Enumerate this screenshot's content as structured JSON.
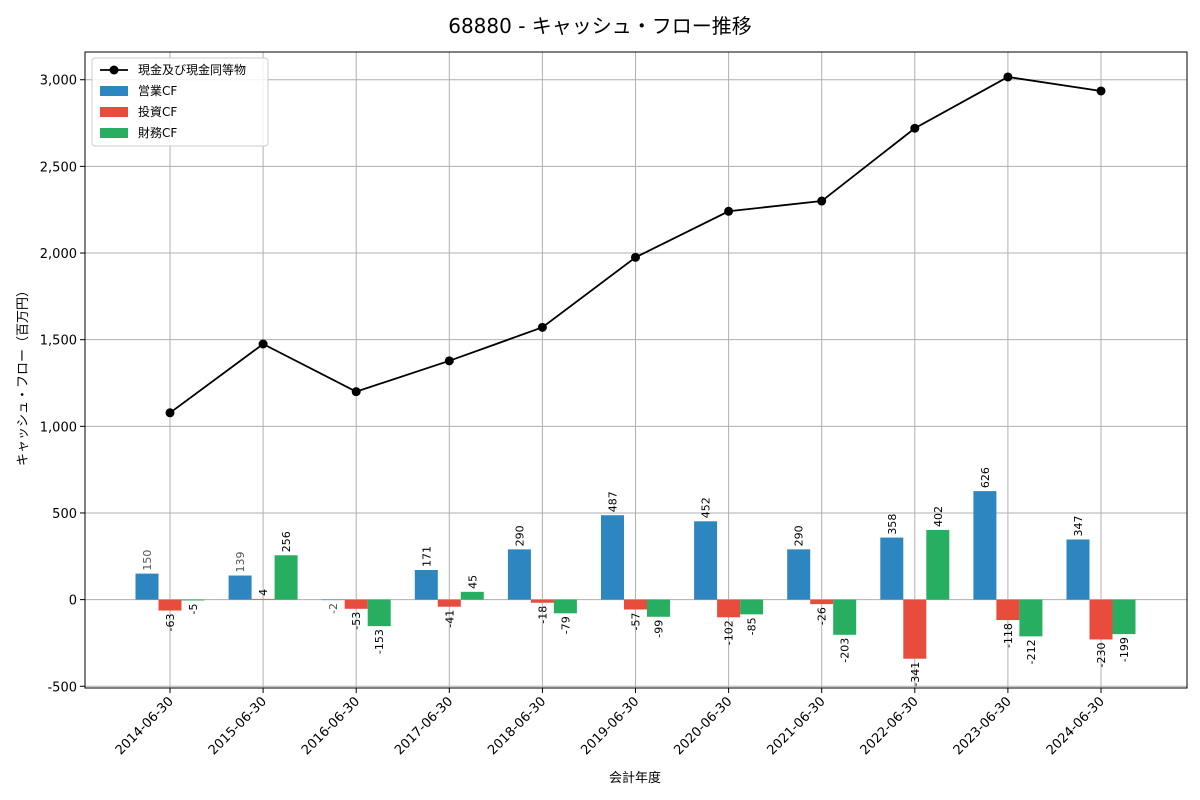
{
  "chart_data": {
    "type": "bar",
    "title": "68880 - キャッシュ・フロー推移",
    "xlabel": "会計年度",
    "ylabel": "キャッシュ・フロー（百万円）",
    "categories": [
      "2014-06-30",
      "2015-06-30",
      "2016-06-30",
      "2017-06-30",
      "2018-06-30",
      "2019-06-30",
      "2020-06-30",
      "2021-06-30",
      "2022-06-30",
      "2023-06-30",
      "2024-06-30"
    ],
    "ylim": [
      -510,
      3160
    ],
    "yticks": [
      -500,
      0,
      500,
      1000,
      1500,
      2000,
      2500,
      3000
    ],
    "ytick_labels": [
      "-500",
      "0",
      "500",
      "1,000",
      "1,500",
      "2,000",
      "2,500",
      "3,000"
    ],
    "grid": true,
    "legend_position": "top-left",
    "line_series": {
      "name": "現金及び現金同等物",
      "color": "#000000",
      "values": [
        1078,
        1475,
        1200,
        1378,
        1571,
        1975,
        2241,
        2300,
        2720,
        3016,
        2935
      ]
    },
    "series": [
      {
        "name": "営業CF",
        "color": "#2e86c1",
        "values": [
          150,
          139,
          -2,
          171,
          290,
          487,
          452,
          290,
          358,
          626,
          347
        ]
      },
      {
        "name": "投資CF",
        "color": "#e74c3c",
        "values": [
          -63,
          4,
          -53,
          -41,
          -18,
          -57,
          -102,
          -26,
          -341,
          -118,
          -230
        ]
      },
      {
        "name": "財務CF",
        "color": "#27ae60",
        "values": [
          -5,
          256,
          -153,
          45,
          -79,
          -99,
          -85,
          -203,
          402,
          -212,
          -199
        ]
      }
    ]
  }
}
